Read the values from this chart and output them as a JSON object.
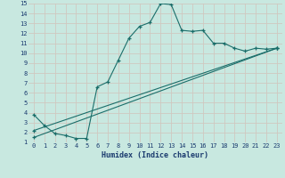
{
  "xlabel": "Humidex (Indice chaleur)",
  "bg_color": "#c8e8e0",
  "grid_color": "#d0c8c0",
  "line_color": "#1a6e6a",
  "xlim": [
    -0.5,
    23.5
  ],
  "ylim": [
    1,
    15
  ],
  "xticks": [
    0,
    1,
    2,
    3,
    4,
    5,
    6,
    7,
    8,
    9,
    10,
    11,
    12,
    13,
    14,
    15,
    16,
    17,
    18,
    19,
    20,
    21,
    22,
    23
  ],
  "yticks": [
    1,
    2,
    3,
    4,
    5,
    6,
    7,
    8,
    9,
    10,
    11,
    12,
    13,
    14,
    15
  ],
  "line1_x": [
    0,
    1,
    2,
    3,
    4,
    5,
    6,
    7,
    8,
    9,
    10,
    11,
    12,
    13,
    14,
    15,
    16,
    17,
    18,
    19,
    20,
    21,
    22,
    23
  ],
  "line1_y": [
    3.8,
    2.7,
    1.9,
    1.7,
    1.4,
    1.4,
    6.6,
    7.1,
    9.3,
    11.5,
    12.7,
    13.1,
    15.0,
    14.9,
    12.3,
    12.2,
    12.3,
    11.0,
    11.0,
    10.5,
    10.2,
    10.5,
    10.4,
    10.5
  ],
  "line2_x": [
    0,
    23
  ],
  "line2_y": [
    2.2,
    10.5
  ],
  "line3_x": [
    0,
    23
  ],
  "line3_y": [
    1.5,
    10.5
  ],
  "xlabel_fontsize": 6,
  "tick_fontsize": 5
}
